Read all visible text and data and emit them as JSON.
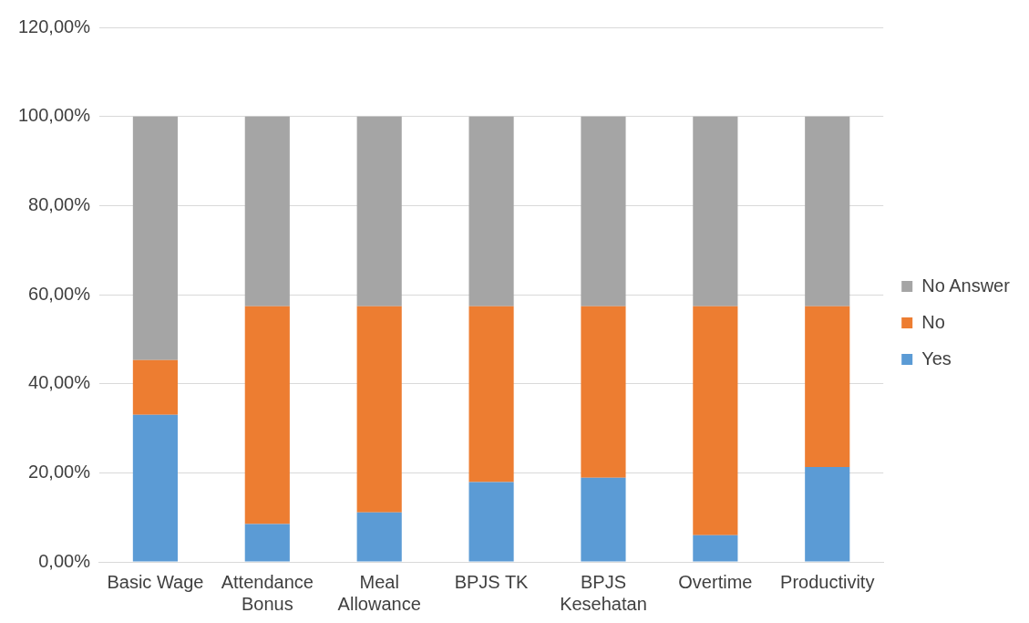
{
  "chart_data": {
    "type": "bar",
    "stacked": true,
    "categories": [
      "Basic Wage",
      "Attendance Bonus",
      "Meal Allowance",
      "BPJS TK",
      "BPJS Kesehatan",
      "Overtime",
      "Productivity"
    ],
    "series": [
      {
        "name": "Yes",
        "color": "#5b9bd5",
        "values": [
          33.0,
          8.5,
          11.1,
          17.9,
          18.9,
          6.0,
          21.3
        ]
      },
      {
        "name": "No",
        "color": "#ed7d31",
        "values": [
          12.3,
          48.9,
          46.3,
          39.5,
          38.5,
          51.4,
          36.1
        ]
      },
      {
        "name": "No Answer",
        "color": "#a5a5a5",
        "values": [
          54.7,
          42.6,
          42.6,
          42.6,
          42.6,
          42.6,
          42.6
        ]
      }
    ],
    "ylim": [
      0,
      120
    ],
    "yticks": [
      {
        "value": 0,
        "label": "0,00%"
      },
      {
        "value": 20,
        "label": "20,00%"
      },
      {
        "value": 40,
        "label": "40,00%"
      },
      {
        "value": 60,
        "label": "60,00%"
      },
      {
        "value": 80,
        "label": "80,00%"
      },
      {
        "value": 100,
        "label": "100,00%"
      },
      {
        "value": 120,
        "label": "120,00%"
      }
    ],
    "grid": "y",
    "legend": "right"
  }
}
